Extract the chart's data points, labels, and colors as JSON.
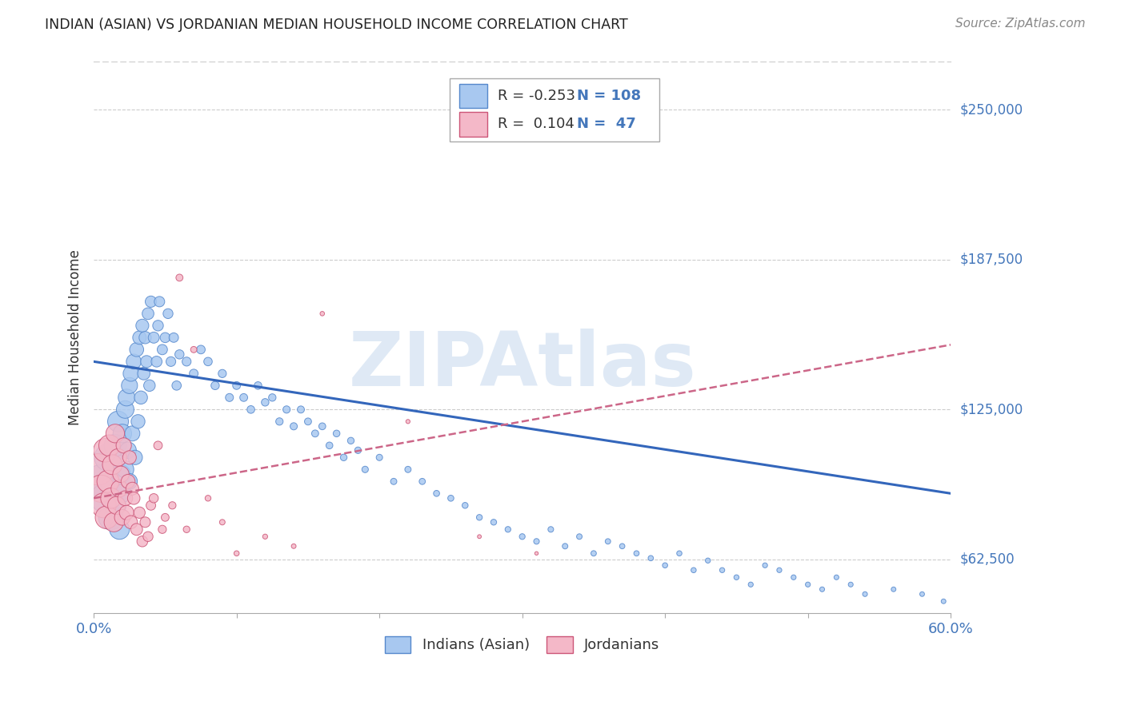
{
  "title": "INDIAN (ASIAN) VS JORDANIAN MEDIAN HOUSEHOLD INCOME CORRELATION CHART",
  "source": "Source: ZipAtlas.com",
  "ylabel": "Median Household Income",
  "legend_labels": [
    "Indians (Asian)",
    "Jordanians"
  ],
  "legend_R_indian": "-0.253",
  "legend_N_indian": "108",
  "legend_R_jordanian": "0.104",
  "legend_N_jordanian": "47",
  "color_indian_face": "#A8C8F0",
  "color_indian_edge": "#5588CC",
  "color_jordanian_face": "#F4B8C8",
  "color_jordanian_edge": "#CC5577",
  "color_line_indian": "#3366BB",
  "color_line_jordanian": "#CC6688",
  "color_text_blue": "#4477BB",
  "color_title": "#222222",
  "color_source": "#888888",
  "watermark": "ZIPAtlas",
  "background": "#FFFFFF",
  "xlim": [
    0.0,
    0.6
  ],
  "ylim": [
    40000,
    270000
  ],
  "trend_indian_y0": 145000,
  "trend_indian_y1": 90000,
  "trend_jordan_y0": 88000,
  "trend_jordan_y1": 152000,
  "indian_x": [
    0.005,
    0.008,
    0.01,
    0.012,
    0.013,
    0.015,
    0.015,
    0.017,
    0.018,
    0.019,
    0.02,
    0.02,
    0.022,
    0.022,
    0.023,
    0.024,
    0.025,
    0.025,
    0.026,
    0.027,
    0.028,
    0.029,
    0.03,
    0.031,
    0.032,
    0.033,
    0.034,
    0.035,
    0.036,
    0.037,
    0.038,
    0.039,
    0.04,
    0.042,
    0.044,
    0.045,
    0.046,
    0.048,
    0.05,
    0.052,
    0.054,
    0.056,
    0.058,
    0.06,
    0.065,
    0.07,
    0.075,
    0.08,
    0.085,
    0.09,
    0.095,
    0.1,
    0.105,
    0.11,
    0.115,
    0.12,
    0.125,
    0.13,
    0.135,
    0.14,
    0.145,
    0.15,
    0.155,
    0.16,
    0.165,
    0.17,
    0.175,
    0.18,
    0.185,
    0.19,
    0.2,
    0.21,
    0.22,
    0.23,
    0.24,
    0.25,
    0.26,
    0.27,
    0.28,
    0.29,
    0.3,
    0.31,
    0.32,
    0.33,
    0.34,
    0.35,
    0.36,
    0.37,
    0.38,
    0.39,
    0.4,
    0.41,
    0.42,
    0.43,
    0.44,
    0.45,
    0.46,
    0.47,
    0.48,
    0.49,
    0.5,
    0.51,
    0.52,
    0.53,
    0.54,
    0.56,
    0.58,
    0.595
  ],
  "indian_y": [
    95000,
    88000,
    105000,
    80000,
    92000,
    110000,
    85000,
    120000,
    75000,
    98000,
    115000,
    90000,
    125000,
    100000,
    130000,
    108000,
    135000,
    95000,
    140000,
    115000,
    145000,
    105000,
    150000,
    120000,
    155000,
    130000,
    160000,
    140000,
    155000,
    145000,
    165000,
    135000,
    170000,
    155000,
    145000,
    160000,
    170000,
    150000,
    155000,
    165000,
    145000,
    155000,
    135000,
    148000,
    145000,
    140000,
    150000,
    145000,
    135000,
    140000,
    130000,
    135000,
    130000,
    125000,
    135000,
    128000,
    130000,
    120000,
    125000,
    118000,
    125000,
    120000,
    115000,
    118000,
    110000,
    115000,
    105000,
    112000,
    108000,
    100000,
    105000,
    95000,
    100000,
    95000,
    90000,
    88000,
    85000,
    80000,
    78000,
    75000,
    72000,
    70000,
    75000,
    68000,
    72000,
    65000,
    70000,
    68000,
    65000,
    63000,
    60000,
    65000,
    58000,
    62000,
    58000,
    55000,
    52000,
    60000,
    58000,
    55000,
    52000,
    50000,
    55000,
    52000,
    48000,
    50000,
    48000,
    45000
  ],
  "indian_size": [
    900,
    700,
    600,
    500,
    450,
    400,
    380,
    350,
    320,
    300,
    280,
    260,
    250,
    240,
    230,
    220,
    210,
    200,
    195,
    185,
    180,
    170,
    160,
    155,
    148,
    140,
    135,
    128,
    122,
    118,
    112,
    108,
    104,
    100,
    96,
    92,
    88,
    85,
    82,
    79,
    76,
    73,
    70,
    68,
    65,
    62,
    60,
    58,
    56,
    54,
    52,
    50,
    50,
    48,
    47,
    46,
    45,
    44,
    43,
    42,
    41,
    40,
    40,
    39,
    38,
    37,
    36,
    36,
    35,
    34,
    33,
    32,
    32,
    31,
    30,
    30,
    29,
    28,
    28,
    27,
    27,
    26,
    26,
    25,
    25,
    24,
    24,
    23,
    23,
    23,
    22,
    22,
    22,
    21,
    21,
    21,
    20,
    20,
    20,
    20,
    20,
    19,
    19,
    19,
    19,
    18,
    18,
    18
  ],
  "jordanian_x": [
    0.003,
    0.005,
    0.007,
    0.008,
    0.009,
    0.01,
    0.011,
    0.012,
    0.013,
    0.014,
    0.015,
    0.016,
    0.017,
    0.018,
    0.019,
    0.02,
    0.021,
    0.022,
    0.023,
    0.024,
    0.025,
    0.026,
    0.027,
    0.028,
    0.03,
    0.032,
    0.034,
    0.036,
    0.038,
    0.04,
    0.042,
    0.045,
    0.048,
    0.05,
    0.055,
    0.06,
    0.065,
    0.07,
    0.08,
    0.09,
    0.1,
    0.12,
    0.14,
    0.16,
    0.22,
    0.27,
    0.31
  ],
  "jordanian_y": [
    100000,
    92000,
    85000,
    108000,
    80000,
    95000,
    110000,
    88000,
    102000,
    78000,
    115000,
    85000,
    105000,
    92000,
    98000,
    80000,
    110000,
    88000,
    82000,
    95000,
    105000,
    78000,
    92000,
    88000,
    75000,
    82000,
    70000,
    78000,
    72000,
    85000,
    88000,
    110000,
    75000,
    80000,
    85000,
    180000,
    75000,
    150000,
    88000,
    78000,
    65000,
    72000,
    68000,
    165000,
    120000,
    72000,
    65000
  ],
  "jordanian_size": [
    800,
    600,
    500,
    450,
    420,
    400,
    370,
    340,
    320,
    300,
    280,
    260,
    245,
    230,
    215,
    200,
    190,
    180,
    170,
    160,
    150,
    142,
    134,
    126,
    115,
    105,
    95,
    88,
    80,
    74,
    68,
    60,
    54,
    50,
    44,
    40,
    36,
    32,
    28,
    25,
    22,
    20,
    18,
    16,
    14,
    12,
    10
  ]
}
